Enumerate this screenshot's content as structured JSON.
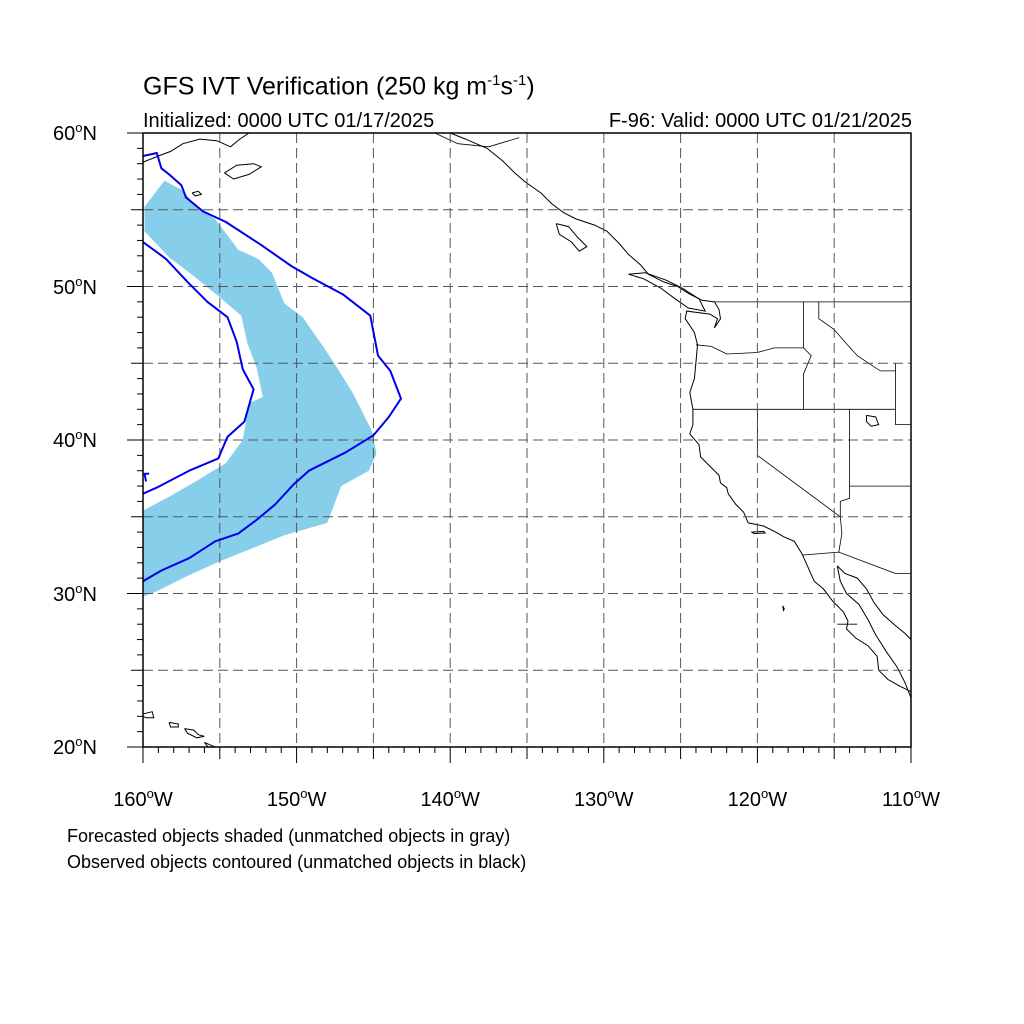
{
  "header": {
    "title_main": "GFS IVT Verification (250 kg m",
    "title_exp1": "-1",
    "title_mid": "s",
    "title_exp2": "-1",
    "title_end": ")",
    "initialized": "Initialized: 0000 UTC 01/17/2025",
    "valid": "F-96: Valid: 0000 UTC 01/21/2025"
  },
  "notes": {
    "line1": "Forecasted objects shaded (unmatched objects in gray)",
    "line2": "Observed objects contoured (unmatched objects in black)"
  },
  "axes": {
    "lon_min": -160,
    "lon_max": -110,
    "lat_min": 20,
    "lat_max": 60,
    "lat_labels": [
      {
        "value": 60,
        "num": "60",
        "hem": "N"
      },
      {
        "value": 50,
        "num": "50",
        "hem": "N"
      },
      {
        "value": 40,
        "num": "40",
        "hem": "N"
      },
      {
        "value": 30,
        "num": "30",
        "hem": "N"
      },
      {
        "value": 20,
        "num": "20",
        "hem": "N"
      }
    ],
    "lon_labels": [
      {
        "value": -160,
        "num": "160",
        "hem": "W"
      },
      {
        "value": -150,
        "num": "150",
        "hem": "W"
      },
      {
        "value": -140,
        "num": "140",
        "hem": "W"
      },
      {
        "value": -130,
        "num": "130",
        "hem": "W"
      },
      {
        "value": -120,
        "num": "120",
        "hem": "W"
      },
      {
        "value": -110,
        "num": "110",
        "hem": "W"
      }
    ],
    "grid_step": 5,
    "degree_symbol": "o"
  },
  "colors": {
    "forecast_fill": "#87ceeb",
    "observed_contour": "#0000ee",
    "grid": "#555555",
    "coast": "#000000"
  },
  "forecast_object": {
    "points": [
      [
        -159.9,
        55.2
      ],
      [
        -158.6,
        56.9
      ],
      [
        -157.5,
        56.3
      ],
      [
        -156.3,
        55.0
      ],
      [
        -155.3,
        54.4
      ],
      [
        -154.4,
        53.2
      ],
      [
        -153.8,
        52.4
      ],
      [
        -152.5,
        51.8
      ],
      [
        -151.6,
        50.9
      ],
      [
        -150.8,
        48.9
      ],
      [
        -149.6,
        48.0
      ],
      [
        -148.2,
        46.0
      ],
      [
        -147.3,
        44.6
      ],
      [
        -146.3,
        43.0
      ],
      [
        -145.7,
        41.8
      ],
      [
        -145.1,
        40.6
      ],
      [
        -144.8,
        39.1
      ],
      [
        -145.3,
        38.0
      ],
      [
        -147.1,
        37.0
      ],
      [
        -148.0,
        34.6
      ],
      [
        -150.8,
        33.8
      ],
      [
        -153.0,
        32.9
      ],
      [
        -155.0,
        32.1
      ],
      [
        -157.2,
        31.1
      ],
      [
        -159.2,
        30.1
      ],
      [
        -160.0,
        29.8
      ],
      [
        -160.0,
        35.4
      ],
      [
        -158.3,
        36.3
      ],
      [
        -156.4,
        37.4
      ],
      [
        -154.6,
        38.5
      ],
      [
        -153.5,
        40.0
      ],
      [
        -153.1,
        42.4
      ],
      [
        -152.2,
        42.8
      ],
      [
        -152.6,
        44.7
      ],
      [
        -153.2,
        46.3
      ],
      [
        -153.6,
        48.1
      ],
      [
        -155.0,
        49.3
      ],
      [
        -156.6,
        50.6
      ],
      [
        -158.3,
        51.9
      ],
      [
        -159.9,
        53.6
      ]
    ]
  },
  "observed_objects": [
    {
      "type": "main",
      "points": [
        [
          -160.0,
          58.5
        ],
        [
          -159.1,
          58.7
        ],
        [
          -158.8,
          57.7
        ],
        [
          -158.3,
          57.3
        ],
        [
          -157.5,
          56.6
        ],
        [
          -157.2,
          55.8
        ],
        [
          -156.1,
          54.9
        ],
        [
          -154.6,
          54.2
        ],
        [
          -152.3,
          52.7
        ],
        [
          -150.3,
          51.3
        ],
        [
          -148.9,
          50.5
        ],
        [
          -147.0,
          49.5
        ],
        [
          -145.2,
          48.1
        ],
        [
          -144.7,
          45.5
        ],
        [
          -143.9,
          44.5
        ],
        [
          -143.2,
          42.7
        ],
        [
          -144.0,
          41.5
        ],
        [
          -145.0,
          40.3
        ],
        [
          -146.8,
          39.2
        ],
        [
          -149.2,
          38.0
        ],
        [
          -150.2,
          37.1
        ],
        [
          -151.4,
          35.8
        ],
        [
          -152.6,
          34.8
        ],
        [
          -153.8,
          33.9
        ],
        [
          -155.3,
          33.4
        ],
        [
          -157.0,
          32.3
        ],
        [
          -158.8,
          31.5
        ],
        [
          -160.0,
          30.8
        ]
      ]
    },
    {
      "type": "inner",
      "points": [
        [
          -160.0,
          52.9
        ],
        [
          -158.5,
          51.8
        ],
        [
          -157.1,
          50.3
        ],
        [
          -155.8,
          49.0
        ],
        [
          -154.5,
          48.0
        ],
        [
          -153.9,
          46.4
        ],
        [
          -153.5,
          44.6
        ],
        [
          -152.8,
          43.3
        ],
        [
          -153.4,
          41.2
        ],
        [
          -154.5,
          40.2
        ],
        [
          -155.1,
          38.8
        ],
        [
          -157.0,
          38.0
        ],
        [
          -159.1,
          36.9
        ],
        [
          -160.0,
          36.5
        ]
      ]
    },
    {
      "type": "stub",
      "points": [
        [
          -159.8,
          37.3
        ],
        [
          -159.9,
          37.8
        ],
        [
          -159.6,
          37.8
        ]
      ]
    }
  ],
  "coastlines": {
    "alaska_peninsula": [
      [
        -160.0,
        58.1
      ],
      [
        -159.0,
        58.5
      ],
      [
        -158.2,
        58.8
      ],
      [
        -157.4,
        59.3
      ],
      [
        -156.3,
        59.6
      ],
      [
        -155.2,
        59.5
      ],
      [
        -154.3,
        59.1
      ],
      [
        -153.7,
        59.6
      ],
      [
        -153.1,
        60.0
      ]
    ],
    "kodiak": [
      [
        -154.7,
        57.4
      ],
      [
        -153.9,
        57.9
      ],
      [
        -152.8,
        58.0
      ],
      [
        -152.3,
        57.8
      ],
      [
        -153.1,
        57.3
      ],
      [
        -154.1,
        57.0
      ],
      [
        -154.7,
        57.4
      ]
    ],
    "semidi_islands": [
      [
        -156.8,
        56.1
      ],
      [
        -156.4,
        56.2
      ],
      [
        -156.2,
        56.0
      ],
      [
        -156.6,
        55.9
      ],
      [
        -156.8,
        56.1
      ]
    ],
    "southeast_alaska": [
      [
        -140.0,
        60.0
      ],
      [
        -139.0,
        59.6
      ],
      [
        -137.6,
        59.0
      ],
      [
        -136.6,
        58.2
      ],
      [
        -135.8,
        57.4
      ],
      [
        -135.1,
        56.8
      ],
      [
        -134.1,
        56.1
      ],
      [
        -133.4,
        55.4
      ],
      [
        -132.6,
        54.8
      ],
      [
        -131.8,
        54.4
      ],
      [
        -130.6,
        54.0
      ],
      [
        -129.8,
        53.6
      ],
      [
        -129.0,
        52.8
      ],
      [
        -128.4,
        52.1
      ],
      [
        -127.6,
        51.4
      ],
      [
        -127.1,
        50.8
      ],
      [
        -126.1,
        50.3
      ],
      [
        -125.2,
        50.0
      ],
      [
        -124.4,
        49.5
      ],
      [
        -123.6,
        49.1
      ],
      [
        -122.8,
        49.0
      ],
      [
        -122.5,
        48.5
      ],
      [
        -122.4,
        47.9
      ],
      [
        -122.8,
        47.3
      ],
      [
        -122.6,
        47.9
      ],
      [
        -123.1,
        48.2
      ],
      [
        -124.6,
        48.4
      ],
      [
        -124.7,
        47.9
      ],
      [
        -124.1,
        47.0
      ],
      [
        -123.9,
        46.2
      ],
      [
        -124.0,
        45.1
      ],
      [
        -124.1,
        44.0
      ],
      [
        -124.4,
        43.1
      ],
      [
        -124.2,
        42.0
      ],
      [
        -124.2,
        41.0
      ],
      [
        -124.4,
        40.4
      ],
      [
        -123.8,
        39.7
      ],
      [
        -123.7,
        38.9
      ],
      [
        -123.0,
        38.2
      ],
      [
        -122.5,
        37.7
      ],
      [
        -122.4,
        37.2
      ],
      [
        -122.0,
        36.9
      ],
      [
        -121.9,
        36.5
      ],
      [
        -121.4,
        35.8
      ],
      [
        -120.9,
        35.3
      ],
      [
        -120.6,
        34.6
      ],
      [
        -119.6,
        34.4
      ],
      [
        -118.8,
        34.0
      ],
      [
        -118.3,
        33.7
      ],
      [
        -117.6,
        33.4
      ],
      [
        -117.1,
        32.6
      ],
      [
        -116.7,
        31.7
      ],
      [
        -116.3,
        30.8
      ],
      [
        -115.7,
        30.3
      ],
      [
        -115.1,
        29.5
      ],
      [
        -114.4,
        28.8
      ],
      [
        -114.1,
        28.2
      ],
      [
        -114.2,
        27.7
      ],
      [
        -113.6,
        27.1
      ],
      [
        -112.8,
        26.6
      ],
      [
        -112.2,
        25.9
      ],
      [
        -112.1,
        25.0
      ],
      [
        -111.5,
        24.4
      ],
      [
        -110.8,
        24.0
      ],
      [
        -110.0,
        23.6
      ]
    ],
    "gulf_of_california_east": [
      [
        -114.8,
        31.8
      ],
      [
        -114.3,
        31.3
      ],
      [
        -113.5,
        31.0
      ],
      [
        -112.9,
        30.3
      ],
      [
        -112.4,
        29.4
      ],
      [
        -111.8,
        28.6
      ],
      [
        -111.0,
        27.9
      ],
      [
        -110.4,
        27.4
      ],
      [
        -110.0,
        27.0
      ]
    ],
    "gulf_of_california_west": [
      [
        -114.8,
        31.8
      ],
      [
        -114.6,
        30.8
      ],
      [
        -114.2,
        30.0
      ],
      [
        -113.4,
        29.3
      ],
      [
        -112.8,
        28.3
      ],
      [
        -112.3,
        27.3
      ],
      [
        -111.6,
        26.2
      ],
      [
        -110.9,
        25.2
      ],
      [
        -110.4,
        24.2
      ],
      [
        -110.0,
        23.2
      ]
    ],
    "vancouver_island": [
      [
        -128.4,
        50.8
      ],
      [
        -127.4,
        50.5
      ],
      [
        -126.3,
        49.9
      ],
      [
        -125.5,
        49.3
      ],
      [
        -124.5,
        48.6
      ],
      [
        -123.4,
        48.4
      ],
      [
        -123.8,
        49.2
      ],
      [
        -124.9,
        49.9
      ],
      [
        -125.9,
        50.4
      ],
      [
        -127.3,
        50.9
      ],
      [
        -128.4,
        50.8
      ]
    ],
    "haida_gwaii": [
      [
        -133.1,
        54.1
      ],
      [
        -132.3,
        53.9
      ],
      [
        -131.7,
        53.2
      ],
      [
        -131.1,
        52.6
      ],
      [
        -131.6,
        52.3
      ],
      [
        -132.1,
        52.9
      ],
      [
        -132.9,
        53.4
      ],
      [
        -133.1,
        54.1
      ]
    ],
    "hawaii_1": [
      [
        -160.2,
        22.1
      ],
      [
        -159.4,
        22.3
      ],
      [
        -159.3,
        21.9
      ],
      [
        -159.8,
        21.9
      ],
      [
        -160.2,
        22.1
      ]
    ],
    "hawaii_2": [
      [
        -158.3,
        21.6
      ],
      [
        -157.7,
        21.5
      ],
      [
        -157.7,
        21.3
      ],
      [
        -158.2,
        21.3
      ],
      [
        -158.3,
        21.6
      ]
    ],
    "hawaii_3": [
      [
        -157.3,
        21.2
      ],
      [
        -156.7,
        21.1
      ],
      [
        -156.4,
        20.8
      ],
      [
        -156.0,
        20.7
      ],
      [
        -156.5,
        20.6
      ],
      [
        -157.1,
        20.9
      ],
      [
        -157.3,
        21.2
      ]
    ],
    "hawaii_4": [
      [
        -156.0,
        20.3
      ],
      [
        -155.3,
        20.0
      ],
      [
        -155.0,
        19.6
      ],
      [
        -155.6,
        19.8
      ],
      [
        -156.0,
        20.3
      ]
    ],
    "channel_islands": [
      [
        -120.4,
        34.0
      ],
      [
        -119.6,
        34.05
      ],
      [
        -119.5,
        33.95
      ],
      [
        -120.2,
        33.9
      ],
      [
        -120.4,
        34.0
      ]
    ],
    "guadalupe": [
      [
        -118.35,
        29.2
      ],
      [
        -118.25,
        29.0
      ],
      [
        -118.3,
        28.9
      ],
      [
        -118.35,
        29.2
      ]
    ],
    "great_salt_lake": [
      [
        -112.9,
        41.6
      ],
      [
        -112.3,
        41.5
      ],
      [
        -112.1,
        41.0
      ],
      [
        -112.6,
        40.9
      ],
      [
        -112.9,
        41.2
      ],
      [
        -112.9,
        41.6
      ]
    ]
  },
  "borders": {
    "us_canada": [
      [
        -122.8,
        49.0
      ],
      [
        -110.0,
        49.0
      ]
    ],
    "alaska_canada": [
      [
        -141.0,
        60.0
      ],
      [
        -139.5,
        59.3
      ],
      [
        -137.5,
        59.1
      ],
      [
        -135.5,
        59.7
      ]
    ],
    "wa_or": [
      [
        -124.0,
        46.2
      ],
      [
        -123.0,
        46.1
      ],
      [
        -122.0,
        45.6
      ],
      [
        -120.0,
        45.7
      ],
      [
        -118.9,
        46.0
      ],
      [
        -117.0,
        46.0
      ]
    ],
    "wa_id": [
      [
        -117.0,
        49.0
      ],
      [
        -117.0,
        46.0
      ]
    ],
    "or_id": [
      [
        -117.0,
        46.0
      ],
      [
        -116.5,
        45.5
      ],
      [
        -117.0,
        44.3
      ],
      [
        -117.0,
        42.0
      ]
    ],
    "or_ca_nv_id": [
      [
        -124.2,
        42.0
      ],
      [
        -111.0,
        42.0
      ]
    ],
    "ca_nv": [
      [
        -120.0,
        42.0
      ],
      [
        -120.0,
        39.0
      ],
      [
        -114.6,
        35.0
      ]
    ],
    "nv_ut": [
      [
        -114.0,
        42.0
      ],
      [
        -114.0,
        37.0
      ]
    ],
    "nv_az": [
      [
        -114.6,
        35.0
      ],
      [
        -114.6,
        36.0
      ],
      [
        -114.0,
        36.2
      ],
      [
        -114.0,
        37.0
      ]
    ],
    "ut_az": [
      [
        -114.0,
        37.0
      ],
      [
        -110.0,
        37.0
      ]
    ],
    "id_mt": [
      [
        -116.0,
        49.0
      ],
      [
        -116.0,
        47.9
      ],
      [
        -115.0,
        47.2
      ],
      [
        -114.4,
        46.5
      ],
      [
        -113.5,
        45.5
      ],
      [
        -112.0,
        44.5
      ],
      [
        -111.0,
        44.5
      ]
    ],
    "id_wy_ut": [
      [
        -111.0,
        45.0
      ],
      [
        -111.0,
        41.0
      ],
      [
        -110.0,
        41.0
      ]
    ],
    "ca_az": [
      [
        -114.6,
        35.0
      ],
      [
        -114.5,
        33.9
      ],
      [
        -114.7,
        32.7
      ]
    ],
    "us_mexico": [
      [
        -117.1,
        32.5
      ],
      [
        -114.7,
        32.7
      ],
      [
        -111.0,
        31.3
      ],
      [
        -110.0,
        31.3
      ]
    ],
    "mexico_states": [
      [
        -114.8,
        28.0
      ],
      [
        -113.5,
        28.0
      ]
    ]
  }
}
